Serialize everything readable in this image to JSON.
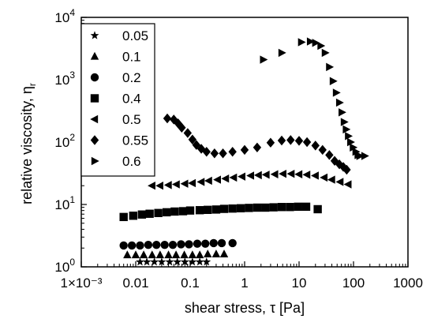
{
  "chart_data": {
    "type": "scatter",
    "x_scale": "log",
    "y_scale": "log",
    "xlabel": "shear stress, τ [Pa]",
    "ylabel": "relative viscosity, η",
    "ylabel_subscript": "r",
    "xlim": [
      0.001,
      1000
    ],
    "ylim": [
      1,
      10000
    ],
    "x_ticks": [
      {
        "value": 0.001,
        "label": "1×10⁻³"
      },
      {
        "value": 0.01,
        "label": "0.01"
      },
      {
        "value": 0.1,
        "label": "0.1"
      },
      {
        "value": 1,
        "label": "1"
      },
      {
        "value": 10,
        "label": "10"
      },
      {
        "value": 100,
        "label": "100"
      },
      {
        "value": 1000,
        "label": "1000"
      }
    ],
    "y_ticks": [
      {
        "value": 1,
        "base": "10",
        "exp": "0"
      },
      {
        "value": 10,
        "base": "10",
        "exp": "1"
      },
      {
        "value": 100,
        "base": "10",
        "exp": "2"
      },
      {
        "value": 1000,
        "base": "10",
        "exp": "3"
      },
      {
        "value": 10000,
        "base": "10",
        "exp": "4"
      }
    ],
    "grid": false,
    "legend_position": "top-left",
    "series": [
      {
        "name": "0.05",
        "marker": "star",
        "points": [
          [
            0.012,
            1.2
          ],
          [
            0.016,
            1.2
          ],
          [
            0.022,
            1.2
          ],
          [
            0.03,
            1.2
          ],
          [
            0.042,
            1.2
          ],
          [
            0.058,
            1.2
          ],
          [
            0.08,
            1.2
          ],
          [
            0.11,
            1.2
          ],
          [
            0.15,
            1.2
          ],
          [
            0.2,
            1.2
          ]
        ]
      },
      {
        "name": "0.1",
        "marker": "triangle-up",
        "points": [
          [
            0.007,
            1.55
          ],
          [
            0.01,
            1.55
          ],
          [
            0.014,
            1.55
          ],
          [
            0.02,
            1.55
          ],
          [
            0.028,
            1.55
          ],
          [
            0.04,
            1.55
          ],
          [
            0.055,
            1.55
          ],
          [
            0.078,
            1.55
          ],
          [
            0.11,
            1.55
          ],
          [
            0.15,
            1.55
          ],
          [
            0.21,
            1.6
          ],
          [
            0.3,
            1.6
          ],
          [
            0.42,
            1.6
          ]
        ]
      },
      {
        "name": "0.2",
        "marker": "circle",
        "points": [
          [
            0.006,
            2.2
          ],
          [
            0.0085,
            2.2
          ],
          [
            0.012,
            2.2
          ],
          [
            0.017,
            2.25
          ],
          [
            0.024,
            2.25
          ],
          [
            0.034,
            2.25
          ],
          [
            0.048,
            2.25
          ],
          [
            0.068,
            2.3
          ],
          [
            0.095,
            2.3
          ],
          [
            0.135,
            2.35
          ],
          [
            0.19,
            2.35
          ],
          [
            0.27,
            2.4
          ],
          [
            0.38,
            2.4
          ],
          [
            0.6,
            2.4
          ]
        ]
      },
      {
        "name": "0.4",
        "marker": "square",
        "points": [
          [
            0.006,
            6.3
          ],
          [
            0.009,
            6.6
          ],
          [
            0.013,
            6.9
          ],
          [
            0.018,
            7.1
          ],
          [
            0.026,
            7.3
          ],
          [
            0.037,
            7.5
          ],
          [
            0.052,
            7.7
          ],
          [
            0.074,
            7.8
          ],
          [
            0.1,
            8.0
          ],
          [
            0.15,
            8.1
          ],
          [
            0.21,
            8.2
          ],
          [
            0.3,
            8.3
          ],
          [
            0.42,
            8.5
          ],
          [
            0.6,
            8.6
          ],
          [
            0.85,
            8.7
          ],
          [
            1.2,
            8.8
          ],
          [
            1.7,
            8.9
          ],
          [
            2.4,
            8.9
          ],
          [
            3.4,
            9.0
          ],
          [
            4.8,
            9.1
          ],
          [
            6.8,
            9.1
          ],
          [
            9.6,
            9.2
          ],
          [
            13.5,
            9.2
          ],
          [
            22,
            8.4
          ]
        ]
      },
      {
        "name": "0.5",
        "marker": "triangle-left",
        "points": [
          [
            0.02,
            20
          ],
          [
            0.028,
            20
          ],
          [
            0.04,
            20.5
          ],
          [
            0.056,
            21
          ],
          [
            0.08,
            21.5
          ],
          [
            0.11,
            22
          ],
          [
            0.16,
            23
          ],
          [
            0.22,
            24
          ],
          [
            0.32,
            25
          ],
          [
            0.45,
            26
          ],
          [
            0.63,
            27
          ],
          [
            0.9,
            28
          ],
          [
            1.3,
            29
          ],
          [
            1.8,
            29.5
          ],
          [
            2.5,
            30
          ],
          [
            3.6,
            30.5
          ],
          [
            5.1,
            31
          ],
          [
            7.2,
            31
          ],
          [
            10,
            30.5
          ],
          [
            14,
            30
          ],
          [
            20,
            29
          ],
          [
            29,
            27
          ],
          [
            40,
            25
          ],
          [
            57,
            23
          ],
          [
            80,
            21
          ]
        ]
      },
      {
        "name": "0.55",
        "marker": "diamond",
        "points": [
          [
            0.038,
            240
          ],
          [
            0.05,
            230
          ],
          [
            0.06,
            200
          ],
          [
            0.07,
            170
          ],
          [
            0.09,
            140
          ],
          [
            0.11,
            110
          ],
          [
            0.13,
            90
          ],
          [
            0.16,
            78
          ],
          [
            0.2,
            70
          ],
          [
            0.28,
            66
          ],
          [
            0.4,
            66
          ],
          [
            0.6,
            70
          ],
          [
            1.0,
            75
          ],
          [
            1.7,
            82
          ],
          [
            3.0,
            98
          ],
          [
            4.8,
            106
          ],
          [
            7.0,
            108
          ],
          [
            10,
            105
          ],
          [
            14,
            100
          ],
          [
            20,
            88
          ],
          [
            27,
            75
          ],
          [
            36,
            62
          ],
          [
            45,
            50
          ],
          [
            55,
            44
          ],
          [
            65,
            40
          ],
          [
            75,
            36
          ]
        ]
      },
      {
        "name": "0.6",
        "marker": "triangle-right",
        "points": [
          [
            2.2,
            2100
          ],
          [
            4.8,
            2700
          ],
          [
            11,
            4000
          ],
          [
            16,
            4100
          ],
          [
            20,
            3900
          ],
          [
            25,
            3500
          ],
          [
            30,
            2700
          ],
          [
            36,
            1600
          ],
          [
            42,
            950
          ],
          [
            48,
            620
          ],
          [
            55,
            430
          ],
          [
            61,
            300
          ],
          [
            67,
            210
          ],
          [
            73,
            160
          ],
          [
            80,
            125
          ],
          [
            88,
            100
          ],
          [
            98,
            82
          ],
          [
            110,
            70
          ],
          [
            120,
            62
          ],
          [
            130,
            60
          ],
          [
            160,
            60
          ]
        ]
      }
    ]
  }
}
